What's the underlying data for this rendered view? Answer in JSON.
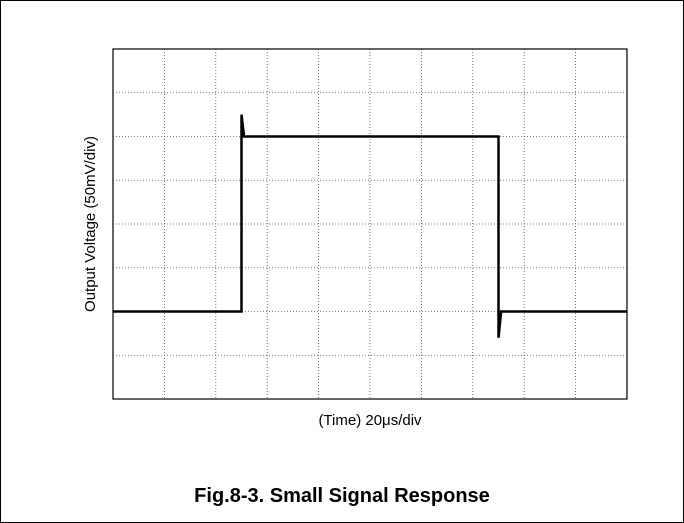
{
  "chart_data": {
    "type": "line",
    "caption": "Fig.8-3. Small Signal Response",
    "xlabel": "(Time) 20μs/div",
    "ylabel": "Output Voltage (50mV/div)",
    "x": [
      0,
      2.5,
      2.5,
      2.55,
      7.5,
      7.5,
      7.55,
      10
    ],
    "values": [
      2,
      2,
      6.5,
      6,
      6,
      1.4,
      2,
      2
    ],
    "color": "#000000",
    "xlim": [
      0,
      10
    ],
    "ylim": [
      0,
      8
    ],
    "xticks": [
      0,
      1,
      2,
      3,
      4,
      5,
      6,
      7,
      8,
      9,
      10
    ],
    "yticks": [
      0,
      1,
      2,
      3,
      4,
      5,
      6,
      7,
      8
    ],
    "grid": true
  }
}
